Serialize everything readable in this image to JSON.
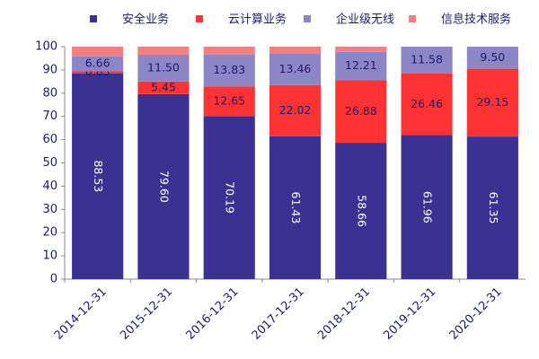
{
  "chart_data": {
    "type": "stacked_bar",
    "categories": [
      "2014-12-31",
      "2015-12-31",
      "2016-12-31",
      "2017-12-31",
      "2018-12-31",
      "2019-12-31",
      "2020-12-31"
    ],
    "series": [
      {
        "name": "安全业务",
        "color": "#3a3192",
        "values": [
          88.53,
          79.6,
          70.19,
          61.43,
          58.66,
          61.96,
          61.35
        ],
        "value_labels": [
          "88.53",
          "79.60",
          "70.19",
          "61.43",
          "58.66",
          "61.96",
          "61.35"
        ]
      },
      {
        "name": "云计算业务",
        "color": "#ff3333",
        "values": [
          0.83,
          5.45,
          12.65,
          22.02,
          26.88,
          26.46,
          29.15
        ],
        "value_labels": [
          "0.83",
          "5.45",
          "12.65",
          "22.02",
          "26.88",
          "26.46",
          "29.15"
        ]
      },
      {
        "name": "企业级无线",
        "color": "#8d86c6",
        "values": [
          6.66,
          11.5,
          13.83,
          13.46,
          12.21,
          11.58,
          9.5
        ],
        "value_labels": [
          "6.66",
          "11.50",
          "13.83",
          "13.46",
          "12.21",
          "11.58",
          "9.50"
        ]
      },
      {
        "name": "信息技术服务",
        "color": "#f28080",
        "values": [
          3.98,
          3.45,
          3.33,
          3.09,
          2.25,
          0,
          0
        ]
      }
    ],
    "ylim": [
      0,
      100
    ],
    "yticks": [
      0,
      10,
      20,
      30,
      40,
      50,
      60,
      70,
      80,
      90,
      100
    ],
    "grid": false
  }
}
